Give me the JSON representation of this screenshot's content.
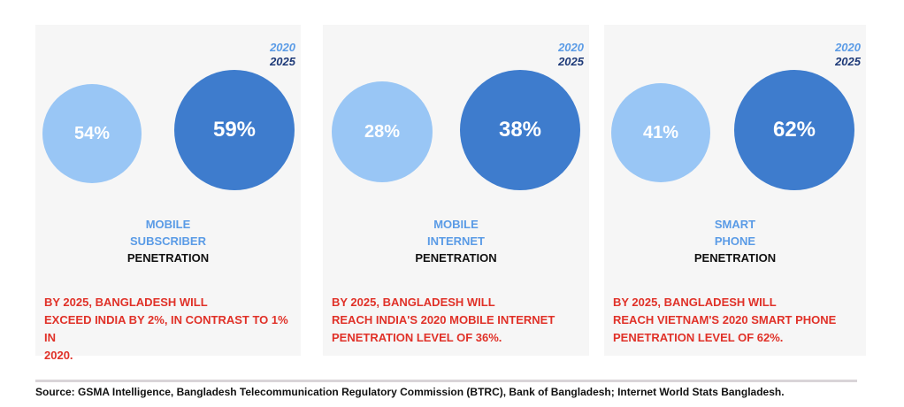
{
  "colors": {
    "panel_bg": "#f6f6f6",
    "light_blue": "#99c6f5",
    "dark_blue": "#3e7ccd",
    "legend_2020": "#5a9be6",
    "legend_2025": "#1e3a78",
    "label_blue": "#5a9be6",
    "label_dark": "#111111",
    "note_red": "#e03128"
  },
  "chart_data": [
    {
      "type": "bubble",
      "legend": [
        "2020",
        "2025"
      ],
      "series": [
        {
          "name": "2020",
          "values": [
            54
          ],
          "display": "54%"
        },
        {
          "name": "2025",
          "values": [
            59
          ],
          "display": "59%"
        }
      ],
      "label_blue": [
        "MOBILE",
        "SUBSCRIBER"
      ],
      "label_dark": "PENETRATION",
      "note": [
        "BY 2025, BANGLADESH WILL",
        "EXCEED INDIA BY 2%, IN CONTRAST TO 1% IN",
        "2020."
      ]
    },
    {
      "type": "bubble",
      "legend": [
        "2020",
        "2025"
      ],
      "series": [
        {
          "name": "2020",
          "values": [
            28
          ],
          "display": "28%"
        },
        {
          "name": "2025",
          "values": [
            38
          ],
          "display": "38%"
        }
      ],
      "label_blue": [
        "MOBILE",
        "INTERNET"
      ],
      "label_dark": "PENETRATION",
      "note": [
        "BY 2025, BANGLADESH WILL",
        "REACH INDIA'S 2020 MOBILE INTERNET",
        "PENETRATION LEVEL OF 36%."
      ]
    },
    {
      "type": "bubble",
      "legend": [
        "2020",
        "2025"
      ],
      "series": [
        {
          "name": "2020",
          "values": [
            41
          ],
          "display": "41%"
        },
        {
          "name": "2025",
          "values": [
            62
          ],
          "display": "62%"
        }
      ],
      "label_blue": [
        "SMART",
        "PHONE"
      ],
      "label_dark": "PENETRATION",
      "note": [
        "BY 2025, BANGLADESH WILL",
        "REACH VIETNAM'S 2020 SMART PHONE",
        "PENETRATION LEVEL OF 62%."
      ]
    }
  ],
  "source": "Source: GSMA Intelligence, Bangladesh Telecommunication Regulatory Commission (BTRC), Bank of Bangladesh; Internet World Stats Bangladesh."
}
